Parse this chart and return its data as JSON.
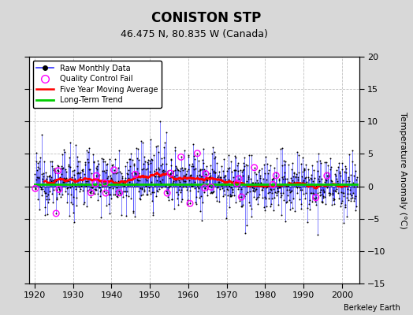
{
  "title": "CONISTON STP",
  "subtitle": "46.475 N, 80.835 W (Canada)",
  "credit": "Berkeley Earth",
  "ylabel_right": "Temperature Anomaly (°C)",
  "xlim": [
    1918.5,
    2004.5
  ],
  "ylim": [
    -15,
    20
  ],
  "yticks_right": [
    -15,
    -10,
    -5,
    0,
    5,
    10,
    15,
    20
  ],
  "xticks": [
    1920,
    1930,
    1940,
    1950,
    1960,
    1970,
    1980,
    1990,
    2000
  ],
  "background_color": "#d8d8d8",
  "plot_bg_color": "#ffffff",
  "raw_line_color": "#3333ff",
  "raw_dot_color": "#000000",
  "qc_fail_color": "#ff00ff",
  "moving_avg_color": "#ff0000",
  "trend_color": "#00cc00",
  "grid_color": "#c0c0c0",
  "seed": 12345,
  "n_years": 84,
  "start_year": 1920,
  "months_per_year": 12,
  "title_fontsize": 12,
  "subtitle_fontsize": 9,
  "tick_fontsize": 8,
  "legend_fontsize": 7
}
